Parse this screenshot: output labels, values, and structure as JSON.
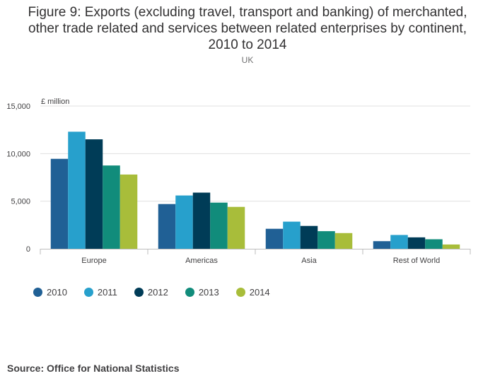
{
  "page": {
    "title": "Figure 9: Exports (excluding travel, transport and banking) of merchanted, other trade related and services between related enterprises by continent, 2010 to 2014",
    "subtitle": "UK",
    "source": "Source: Office for National Statistics"
  },
  "chart_data": {
    "type": "bar",
    "title": "Figure 9: Exports (excluding travel, transport and banking) of merchanted, other trade related and services between related enterprises by continent, 2010 to 2014",
    "subtitle": "UK",
    "xlabel": "",
    "ylabel": "£ million",
    "ylim": [
      0,
      15000
    ],
    "yticks": [
      0,
      5000,
      10000,
      15000
    ],
    "ytick_labels": [
      "0",
      "5,000",
      "10,000",
      "15,000"
    ],
    "grid": true,
    "legend_position": "bottom-left",
    "categories": [
      "Europe",
      "Americas",
      "Asia",
      "Rest of World"
    ],
    "series": [
      {
        "name": "2010",
        "color": "#206095",
        "values": [
          9450,
          4700,
          2100,
          800
        ]
      },
      {
        "name": "2011",
        "color": "#27a0cc",
        "values": [
          12300,
          5600,
          2850,
          1450
        ]
      },
      {
        "name": "2012",
        "color": "#003c57",
        "values": [
          11500,
          5900,
          2400,
          1200
        ]
      },
      {
        "name": "2013",
        "color": "#118c7b",
        "values": [
          8750,
          4850,
          1850,
          1000
        ]
      },
      {
        "name": "2014",
        "color": "#a8bd3a",
        "values": [
          7800,
          4400,
          1650,
          450
        ]
      }
    ]
  }
}
